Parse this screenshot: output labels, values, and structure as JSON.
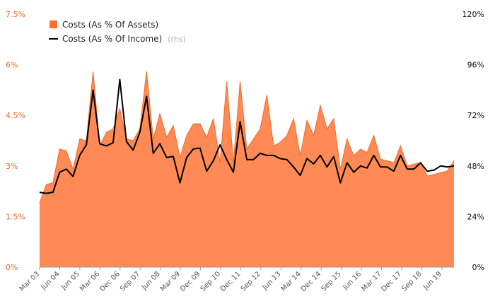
{
  "chart_data": {
    "type": "area+line",
    "title": "",
    "xlabel": "",
    "ylabel": "",
    "legend_position": "top-left",
    "grid": false,
    "left_axis": {
      "ylim": [
        0,
        7.5
      ],
      "ticks": [
        0,
        1.5,
        3,
        4.5,
        6,
        7.5
      ],
      "tick_labels": [
        "0%",
        "1.5%",
        "3%",
        "4.5%",
        "6%",
        "7.5%"
      ],
      "color": "#f26b2a"
    },
    "right_axis": {
      "ylim": [
        0,
        120
      ],
      "ticks": [
        0,
        24,
        48,
        72,
        96,
        120
      ],
      "tick_labels": [
        "0%",
        "24%",
        "48%",
        "72%",
        "96%",
        "120%"
      ],
      "color": "#111111"
    },
    "x_tick_labels": [
      "Mar 03",
      "Jun 04",
      "Jun 05",
      "Mar 06",
      "Dec 06",
      "Sep 07",
      "Jun 08",
      "Mar 09",
      "Dec 09",
      "Sep 10",
      "Dec 11",
      "Sep 12",
      "Jun 13",
      "Mar 14",
      "Dec 14",
      "Sep 15",
      "Jun 16",
      "Mar 17",
      "Dec 17",
      "Sep 18",
      "Jun 19"
    ],
    "series": [
      {
        "name": "Costs (As % Of Assets)",
        "type": "area",
        "axis": "left",
        "color": "#ff8a55",
        "edge_color": "#f26b2a",
        "values": [
          1.9,
          2.45,
          2.5,
          3.5,
          3.45,
          2.9,
          3.8,
          3.75,
          5.8,
          3.6,
          4.0,
          4.1,
          4.7,
          3.8,
          3.75,
          4.1,
          5.8,
          3.8,
          4.55,
          3.85,
          4.2,
          3.25,
          3.9,
          4.25,
          4.25,
          3.85,
          4.4,
          3.1,
          5.5,
          3.1,
          5.5,
          3.5,
          3.8,
          4.1,
          5.1,
          3.6,
          3.7,
          3.9,
          4.4,
          3.3,
          4.35,
          3.9,
          4.8,
          4.1,
          4.4,
          2.9,
          3.8,
          3.3,
          3.5,
          3.4,
          3.9,
          3.2,
          3.15,
          3.1,
          3.6,
          3.0,
          3.05,
          3.1,
          2.7,
          2.75,
          2.8,
          2.85,
          3.15
        ]
      },
      {
        "name": "Costs (As % Of Income)",
        "note": "(rhs)",
        "type": "line",
        "axis": "right",
        "color": "#000000",
        "values": [
          35.5,
          35,
          35.5,
          45,
          46.5,
          43,
          53,
          58,
          84,
          58.5,
          57.5,
          59,
          89,
          59.5,
          55.5,
          64,
          81,
          54,
          58.5,
          52,
          52.5,
          40,
          52,
          56,
          56.5,
          45.5,
          50.5,
          58,
          51,
          45,
          69,
          51,
          51,
          54,
          53,
          53,
          51.5,
          51,
          47.5,
          43.5,
          51.5,
          49,
          53,
          47.5,
          52.5,
          40,
          49.5,
          45,
          48,
          47,
          53,
          47.5,
          47.5,
          45.5,
          53,
          46.5,
          46.5,
          49.5,
          45.5,
          46,
          48,
          47.5,
          48
        ]
      }
    ]
  }
}
